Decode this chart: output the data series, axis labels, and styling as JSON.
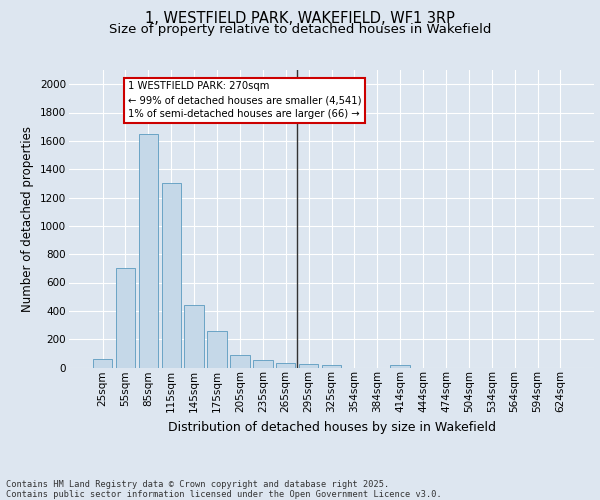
{
  "title_line1": "1, WESTFIELD PARK, WAKEFIELD, WF1 3RP",
  "title_line2": "Size of property relative to detached houses in Wakefield",
  "xlabel": "Distribution of detached houses by size in Wakefield",
  "ylabel": "Number of detached properties",
  "categories": [
    "25sqm",
    "55sqm",
    "85sqm",
    "115sqm",
    "145sqm",
    "175sqm",
    "205sqm",
    "235sqm",
    "265sqm",
    "295sqm",
    "325sqm",
    "354sqm",
    "384sqm",
    "414sqm",
    "444sqm",
    "474sqm",
    "504sqm",
    "534sqm",
    "564sqm",
    "594sqm",
    "624sqm"
  ],
  "values": [
    60,
    700,
    1650,
    1300,
    440,
    255,
    90,
    55,
    30,
    25,
    20,
    0,
    0,
    15,
    0,
    0,
    0,
    0,
    0,
    0,
    0
  ],
  "bar_color": "#c5d8e8",
  "bar_edge_color": "#5a9abf",
  "vline_index": 8,
  "vline_color": "#333333",
  "annotation_text": "1 WESTFIELD PARK: 270sqm\n← 99% of detached houses are smaller (4,541)\n1% of semi-detached houses are larger (66) →",
  "annotation_box_facecolor": "#ffffff",
  "annotation_box_edgecolor": "#cc0000",
  "ylim": [
    0,
    2100
  ],
  "yticks": [
    0,
    200,
    400,
    600,
    800,
    1000,
    1200,
    1400,
    1600,
    1800,
    2000
  ],
  "bg_color": "#dde6f0",
  "plot_bg_color": "#dde6f0",
  "grid_color": "#ffffff",
  "footer_text": "Contains HM Land Registry data © Crown copyright and database right 2025.\nContains public sector information licensed under the Open Government Licence v3.0.",
  "title_fontsize": 10.5,
  "subtitle_fontsize": 9.5,
  "axis_label_fontsize": 8.5,
  "tick_fontsize": 7.5,
  "footer_fontsize": 6.2
}
